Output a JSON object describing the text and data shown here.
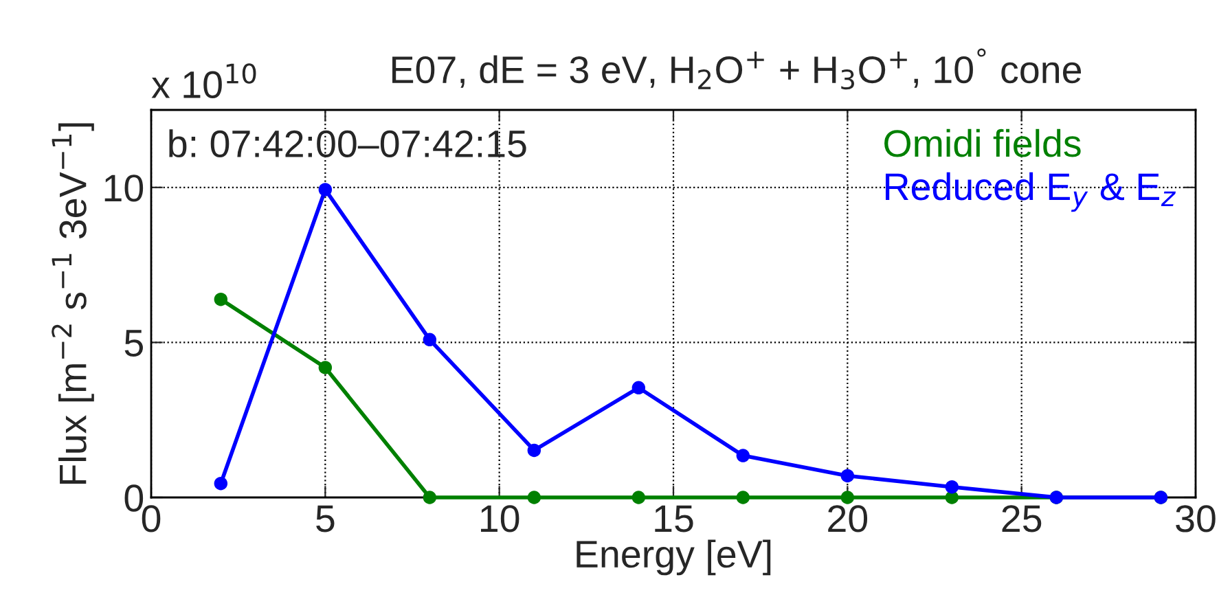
{
  "chart_data": {
    "type": "line",
    "title": "E07, dE = 3 eV, H$_{2}$O$^{+}$ + H$_{3}$O$^{+}$, 10$^{°}$ cone",
    "xlabel": "Energy [eV]",
    "ylabel": "Flux [m$^{−2}$ s$^{−1}$ 3eV$^{−1}$]",
    "x": [
      2,
      5,
      8,
      11,
      14,
      17,
      20,
      23,
      26,
      29
    ],
    "series": [
      {
        "name": "Omidi fields",
        "color": "#008000",
        "values": [
          6.39,
          4.19,
          0,
          0,
          0,
          0,
          0,
          0,
          0,
          0
        ]
      },
      {
        "name": "Reduced E$_{y}$ & E$_{z}$",
        "color": "#0000ff",
        "values": [
          0.45,
          9.93,
          5.09,
          1.52,
          3.54,
          1.35,
          0.7,
          0.34,
          0,
          0
        ]
      }
    ],
    "annotations": [
      "x 10$^{10}$",
      "b: 07:42:00–07:42:15"
    ],
    "xlim": [
      0,
      30
    ],
    "xticks": [
      0,
      5,
      10,
      15,
      20,
      25,
      30
    ],
    "ylim": [
      0,
      12.5
    ],
    "yticks": [
      0,
      5,
      10
    ],
    "grid": true,
    "legend": "top right",
    "marker": "circle",
    "line_style": "solid"
  }
}
